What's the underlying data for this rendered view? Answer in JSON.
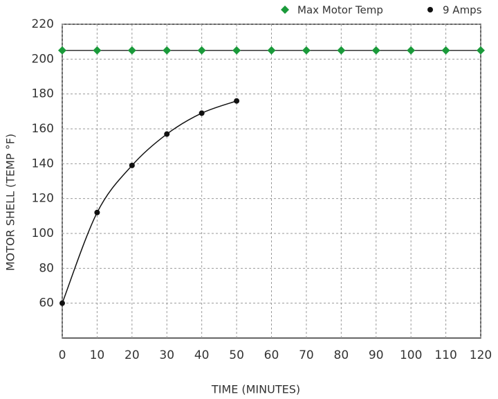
{
  "chart_data": {
    "type": "line",
    "xlabel": "TIME (MINUTES)",
    "ylabel": "MOTOR SHELL (TEMP °F)",
    "xlim": [
      0,
      120
    ],
    "xticks": [
      0,
      10,
      20,
      30,
      40,
      50,
      60,
      70,
      80,
      90,
      100,
      110,
      120
    ],
    "ylim": [
      40,
      220
    ],
    "yticks": [
      60,
      80,
      100,
      120,
      140,
      160,
      180,
      200,
      220
    ],
    "grid": true,
    "legend": "top",
    "series": [
      {
        "name": "Max Motor Temp",
        "color": "#1a9a3a",
        "line_color": "#333333",
        "marker": "diamond",
        "smooth": false,
        "x": [
          0,
          10,
          20,
          30,
          40,
          50,
          60,
          70,
          80,
          90,
          100,
          110,
          120
        ],
        "values": [
          205,
          205,
          205,
          205,
          205,
          205,
          205,
          205,
          205,
          205,
          205,
          205,
          205
        ]
      },
      {
        "name": "9 Amps",
        "color": "#111111",
        "line_color": "#111111",
        "marker": "circle",
        "smooth": true,
        "x": [
          0,
          10,
          20,
          30,
          40,
          50
        ],
        "values": [
          60,
          112,
          139,
          157,
          169,
          176
        ]
      }
    ]
  }
}
